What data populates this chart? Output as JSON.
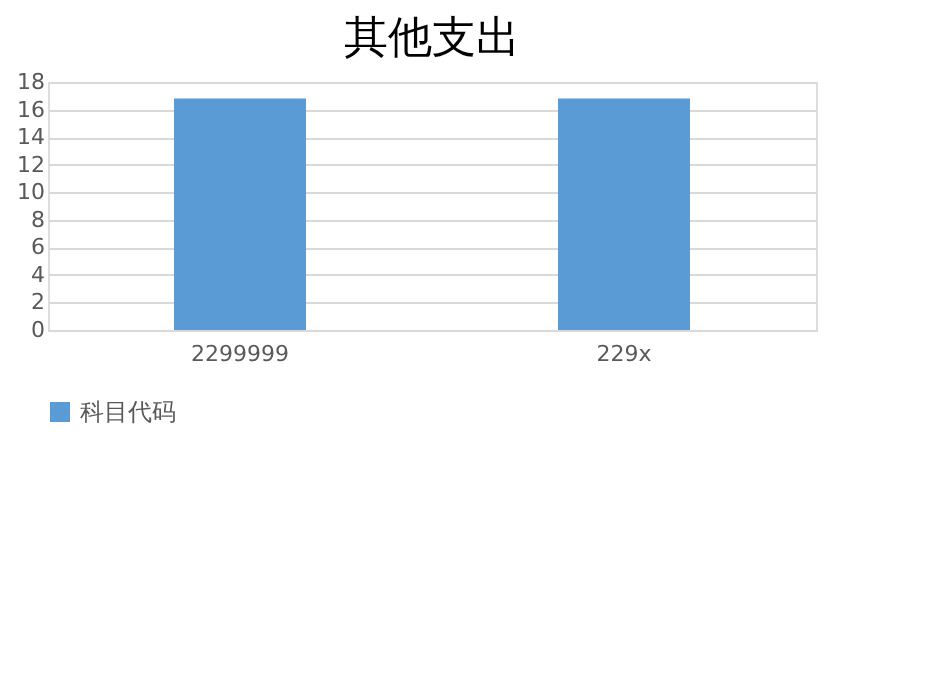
{
  "chart_data": {
    "type": "bar",
    "title": "其他支出",
    "categories": [
      "2299999",
      "229x"
    ],
    "series": [
      {
        "name": "科目代码",
        "color": "#5b9bd5",
        "values": [
          16.8,
          16.8
        ]
      }
    ],
    "ylim": [
      0,
      18
    ],
    "yticks": [
      0,
      2,
      4,
      6,
      8,
      10,
      12,
      14,
      16,
      18
    ],
    "grid": "y",
    "legend": "bottom"
  }
}
